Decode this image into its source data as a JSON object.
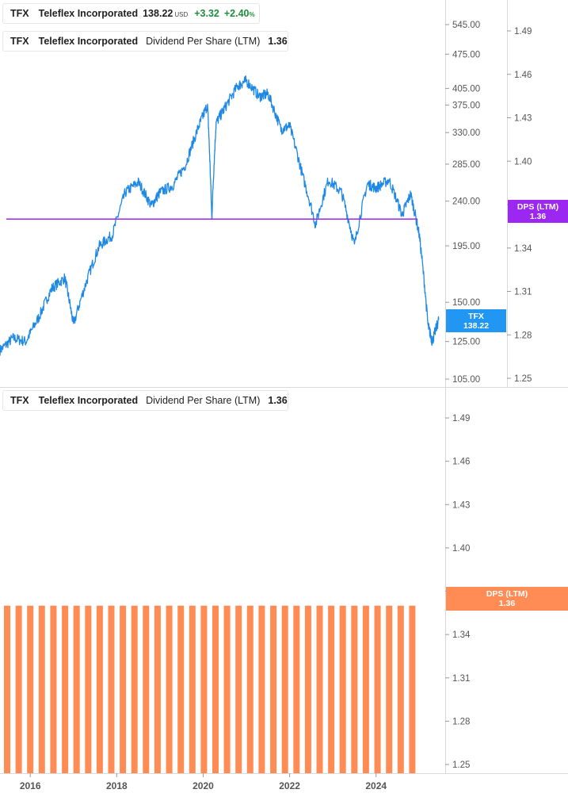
{
  "legend": {
    "price": {
      "symbol": "TFX",
      "company": "Teleflex Incorporated",
      "value": "138.22",
      "currency": "USD",
      "change": "+3.32",
      "change_pct": "+2.40",
      "pct_sign": "%"
    },
    "dps_top": {
      "symbol": "TFX",
      "company": "Teleflex Incorporated",
      "metric": "Dividend Per Share (LTM)",
      "value": "1.36"
    },
    "dps_bottom": {
      "symbol": "TFX",
      "company": "Teleflex Incorporated",
      "metric": "Dividend Per Share (LTM)",
      "value": "1.36"
    }
  },
  "tags": {
    "price": {
      "label": "TFX",
      "value": "138.22"
    },
    "dps_top": {
      "label": "DPS (LTM)",
      "value": "1.36"
    },
    "dps_bottom": {
      "label": "DPS (LTM)",
      "value": "1.36"
    }
  },
  "colors": {
    "price": "#1e88e5",
    "dps_line": "#9c27f0",
    "dps_bar": "#ff8c55",
    "price_tag": "#2196f3",
    "dps_tag": "#9c27f0",
    "bar_tag": "#ff8c55"
  },
  "chart_data": [
    {
      "type": "line",
      "series": [
        {
          "name": "TFX",
          "x": [
            2015.3,
            2015.6,
            2015.9,
            2016.2,
            2016.5,
            2016.8,
            2017.0,
            2017.3,
            2017.6,
            2017.9,
            2018.2,
            2018.5,
            2018.8,
            2019.0,
            2019.3,
            2019.6,
            2019.9,
            2020.1,
            2020.2,
            2020.3,
            2020.5,
            2020.8,
            2021.0,
            2021.3,
            2021.5,
            2021.8,
            2022.0,
            2022.3,
            2022.6,
            2022.9,
            2023.2,
            2023.5,
            2023.8,
            2024.0,
            2024.3,
            2024.6,
            2024.8,
            2025.0,
            2025.2,
            2025.3,
            2025.45
          ],
          "y": [
            120,
            127,
            125,
            140,
            160,
            168,
            135,
            165,
            195,
            205,
            250,
            262,
            235,
            250,
            258,
            285,
            340,
            375,
            220,
            345,
            370,
            410,
            420,
            390,
            395,
            335,
            340,
            270,
            215,
            265,
            250,
            195,
            260,
            255,
            265,
            225,
            248,
            205,
            135,
            125,
            138.22
          ]
        },
        {
          "name": "Dividend Per Share (LTM)",
          "x": [
            2015.3,
            2025.6
          ],
          "y": [
            1.36,
            1.36
          ]
        }
      ],
      "y_left": {
        "ticks": [
          105.0,
          125.0,
          150.0,
          195.0,
          240.0,
          285.0,
          330.0,
          375.0,
          405.0,
          475.0,
          545.0
        ],
        "scale": "log",
        "range": [
          102,
          600
        ]
      },
      "y_right": {
        "ticks": [
          1.25,
          1.28,
          1.31,
          1.34,
          1.37,
          1.4,
          1.43,
          1.46,
          1.49
        ],
        "range": [
          1.245,
          1.505
        ]
      }
    },
    {
      "type": "bar",
      "series": [
        {
          "name": "Dividend Per Share (LTM)",
          "x_start": 2015.3,
          "x_end": 2025.1,
          "count": 36,
          "value": 1.36
        }
      ],
      "y_right": {
        "ticks": [
          1.25,
          1.28,
          1.31,
          1.34,
          1.37,
          1.4,
          1.43,
          1.46,
          1.49
        ],
        "range": [
          1.245,
          1.505
        ]
      }
    }
  ],
  "x_axis": {
    "ticks": [
      2016,
      2018,
      2020,
      2022,
      2024
    ],
    "range": [
      2015.3,
      2025.6
    ]
  }
}
